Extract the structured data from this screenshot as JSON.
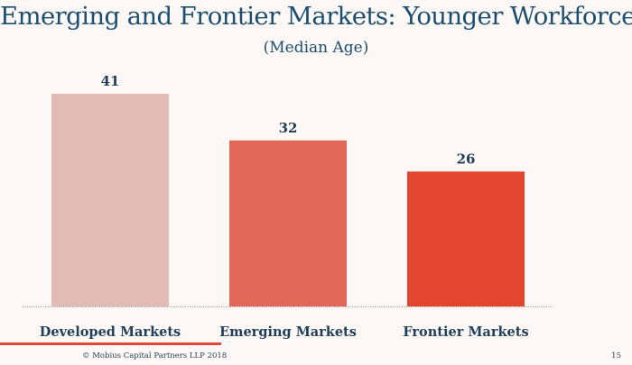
{
  "slide": {
    "title": "Emerging and Frontier Markets: Younger Workforce",
    "subtitle": "(Median Age)",
    "copyright": "© Mobius Capital Partners LLP 2018",
    "page_number": "15"
  },
  "colors": {
    "title": "#1b4f72",
    "label": "#1f3e5a",
    "accent": "#e04a34",
    "baseline": "#8a8a8a"
  },
  "chart_data": {
    "type": "bar",
    "title": "Emerging and Frontier Markets: Younger Workforce",
    "subtitle": "(Median Age)",
    "categories": [
      "Developed Markets",
      "Emerging Markets",
      "Frontier Markets"
    ],
    "values": [
      41,
      32,
      26
    ],
    "bar_colors": [
      "#e2bbb6",
      "#e2685a",
      "#e3452f"
    ],
    "ylim": [
      0,
      41
    ],
    "xlabel": "",
    "ylabel": "",
    "grid": false,
    "legend": "none"
  }
}
